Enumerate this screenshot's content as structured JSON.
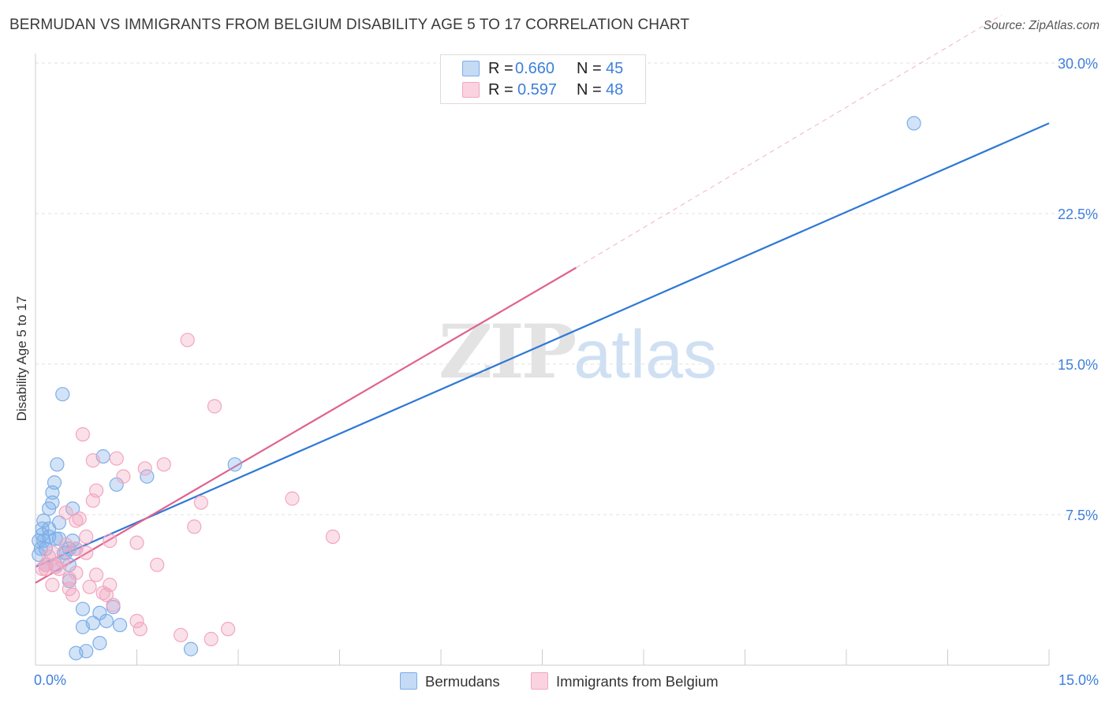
{
  "chart_data": {
    "type": "scatter",
    "title": "BERMUDAN VS IMMIGRANTS FROM BELGIUM DISABILITY AGE 5 TO 17 CORRELATION CHART",
    "source": "Source: ZipAtlas.com",
    "xlabel": "",
    "ylabel": "Disability Age 5 to 17",
    "xlim": [
      0,
      15
    ],
    "ylim": [
      0,
      30
    ],
    "x_tick_labels": [
      {
        "value": 0,
        "label": "0.0%"
      },
      {
        "value": 15,
        "label": "15.0%"
      }
    ],
    "y_tick_labels": [
      {
        "value": 7.5,
        "label": "7.5%"
      },
      {
        "value": 15,
        "label": "15.0%"
      },
      {
        "value": 22.5,
        "label": "22.5%"
      },
      {
        "value": 30,
        "label": "30.0%"
      }
    ],
    "watermark": {
      "part1": "ZIP",
      "part2": "atlas"
    },
    "series": [
      {
        "name": "Bermudans",
        "color": "#7eaee8",
        "line_color": "#2f78d6",
        "r_label": "R = ",
        "r_value": "0.660",
        "n_label": "N = ",
        "n_value": "45",
        "trend": {
          "x0": 0.0,
          "y0": 4.9,
          "x1": 15.0,
          "y1": 27.0
        },
        "points": [
          [
            0.05,
            5.5
          ],
          [
            0.05,
            6.2
          ],
          [
            0.1,
            6.5
          ],
          [
            0.1,
            6.8
          ],
          [
            0.12,
            6.2
          ],
          [
            0.15,
            5.8
          ],
          [
            0.15,
            5.0
          ],
          [
            0.2,
            6.8
          ],
          [
            0.2,
            7.8
          ],
          [
            0.25,
            8.1
          ],
          [
            0.25,
            8.6
          ],
          [
            0.28,
            9.1
          ],
          [
            0.3,
            6.3
          ],
          [
            0.3,
            5.0
          ],
          [
            0.32,
            10.0
          ],
          [
            0.35,
            7.1
          ],
          [
            0.4,
            13.5
          ],
          [
            0.42,
            5.6
          ],
          [
            0.45,
            5.6
          ],
          [
            0.5,
            5.8
          ],
          [
            0.5,
            5.0
          ],
          [
            0.5,
            4.2
          ],
          [
            0.55,
            6.2
          ],
          [
            0.55,
            7.8
          ],
          [
            0.6,
            5.8
          ],
          [
            0.6,
            0.6
          ],
          [
            0.7,
            2.8
          ],
          [
            0.7,
            1.9
          ],
          [
            0.75,
            0.7
          ],
          [
            0.85,
            2.1
          ],
          [
            0.95,
            1.1
          ],
          [
            0.95,
            2.6
          ],
          [
            1.0,
            10.4
          ],
          [
            1.05,
            2.2
          ],
          [
            1.15,
            2.9
          ],
          [
            1.2,
            9.0
          ],
          [
            1.25,
            2.0
          ],
          [
            1.65,
            9.4
          ],
          [
            2.3,
            0.8
          ],
          [
            2.95,
            10.0
          ],
          [
            0.08,
            5.8
          ],
          [
            0.2,
            6.4
          ],
          [
            0.12,
            7.2
          ],
          [
            0.35,
            6.3
          ],
          [
            13.0,
            27.0
          ]
        ]
      },
      {
        "name": "Immigrants from Belgium",
        "color": "#f2a6bf",
        "line_color": "#e0628e",
        "r_label": "R = ",
        "r_value": "0.597",
        "n_label": "N = ",
        "n_value": "48",
        "trend": {
          "x0": 0.0,
          "y0": 4.1,
          "x1": 8.0,
          "y1": 19.8
        },
        "extension": {
          "x0": 8.0,
          "y0": 19.8,
          "x1": 14.3,
          "y1": 32.4
        },
        "points": [
          [
            0.1,
            4.8
          ],
          [
            0.15,
            5.0
          ],
          [
            0.15,
            4.8
          ],
          [
            0.2,
            5.4
          ],
          [
            0.25,
            5.6
          ],
          [
            0.25,
            4.0
          ],
          [
            0.3,
            4.9
          ],
          [
            0.35,
            4.8
          ],
          [
            0.4,
            5.2
          ],
          [
            0.45,
            6.0
          ],
          [
            0.45,
            7.6
          ],
          [
            0.5,
            3.8
          ],
          [
            0.5,
            4.3
          ],
          [
            0.55,
            3.5
          ],
          [
            0.6,
            4.6
          ],
          [
            0.6,
            5.8
          ],
          [
            0.6,
            7.2
          ],
          [
            0.65,
            7.3
          ],
          [
            0.7,
            11.5
          ],
          [
            0.75,
            6.4
          ],
          [
            0.75,
            5.6
          ],
          [
            0.8,
            3.9
          ],
          [
            0.85,
            8.2
          ],
          [
            0.85,
            10.2
          ],
          [
            0.9,
            8.7
          ],
          [
            0.9,
            4.5
          ],
          [
            1.0,
            3.6
          ],
          [
            1.05,
            3.5
          ],
          [
            1.1,
            6.2
          ],
          [
            1.1,
            4.0
          ],
          [
            1.15,
            3.0
          ],
          [
            1.2,
            10.3
          ],
          [
            1.3,
            9.4
          ],
          [
            1.5,
            2.2
          ],
          [
            1.5,
            6.1
          ],
          [
            1.55,
            1.8
          ],
          [
            1.62,
            9.8
          ],
          [
            1.8,
            5.0
          ],
          [
            1.9,
            10.0
          ],
          [
            2.15,
            1.5
          ],
          [
            2.25,
            16.2
          ],
          [
            2.35,
            6.9
          ],
          [
            2.45,
            8.1
          ],
          [
            2.6,
            1.3
          ],
          [
            2.65,
            12.9
          ],
          [
            2.85,
            1.8
          ],
          [
            3.8,
            8.3
          ],
          [
            4.4,
            6.4
          ]
        ]
      }
    ]
  }
}
